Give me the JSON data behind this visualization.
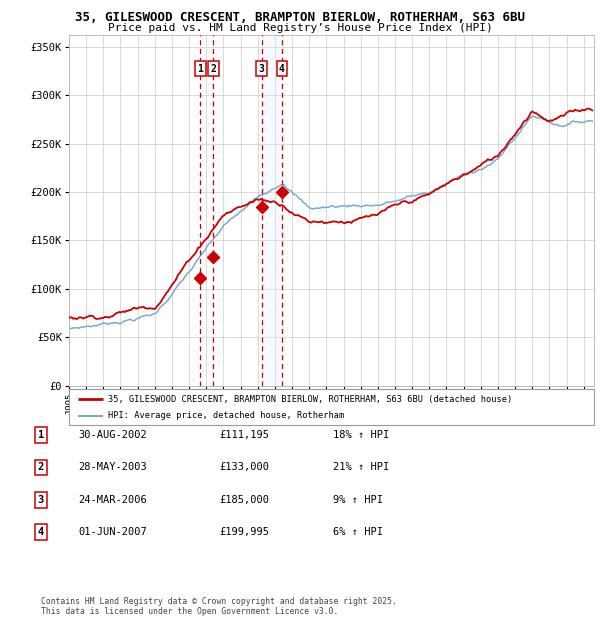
{
  "title_line1": "35, GILESWOOD CRESCENT, BRAMPTON BIERLOW, ROTHERHAM, S63 6BU",
  "title_line2": "Price paid vs. HM Land Registry’s House Price Index (HPI)",
  "yticks": [
    0,
    50000,
    100000,
    150000,
    200000,
    250000,
    300000,
    350000
  ],
  "ytick_labels": [
    "£0",
    "£50K",
    "£100K",
    "£150K",
    "£200K",
    "£250K",
    "£300K",
    "£350K"
  ],
  "ylim": [
    0,
    362000
  ],
  "xlim_start": 1995.2,
  "xlim_end": 2025.6,
  "xticks": [
    1995,
    1996,
    1997,
    1998,
    1999,
    2000,
    2001,
    2002,
    2003,
    2004,
    2005,
    2006,
    2007,
    2008,
    2009,
    2010,
    2011,
    2012,
    2013,
    2014,
    2015,
    2016,
    2017,
    2018,
    2019,
    2020,
    2021,
    2022,
    2023,
    2024,
    2025
  ],
  "sale_dates_num": [
    2002.664,
    2003.403,
    2006.228,
    2007.414
  ],
  "sale_prices": [
    111195,
    133000,
    185000,
    199995
  ],
  "sale_labels": [
    "1",
    "2",
    "3",
    "4"
  ],
  "hpi_color": "#7aaad0",
  "price_color": "#cc0000",
  "sale_dot_color": "#cc0000",
  "vline_color": "#cc0000",
  "shade_color": "#ddeeff",
  "legend_label_price": "35, GILESWOOD CRESCENT, BRAMPTON BIERLOW, ROTHERHAM, S63 6BU (detached house)",
  "legend_label_hpi": "HPI: Average price, detached house, Rotherham",
  "table_entries": [
    {
      "num": "1",
      "date": "30-AUG-2002",
      "price": "£111,195",
      "pct": "18% ↑ HPI"
    },
    {
      "num": "2",
      "date": "28-MAY-2003",
      "price": "£133,000",
      "pct": "21% ↑ HPI"
    },
    {
      "num": "3",
      "date": "24-MAR-2006",
      "price": "£185,000",
      "pct": "9% ↑ HPI"
    },
    {
      "num": "4",
      "date": "01-JUN-2007",
      "price": "£199,995",
      "pct": "6% ↑ HPI"
    }
  ],
  "footer": "Contains HM Land Registry data © Crown copyright and database right 2025.\nThis data is licensed under the Open Government Licence v3.0.",
  "background_color": "#ffffff",
  "grid_color": "#cccccc"
}
